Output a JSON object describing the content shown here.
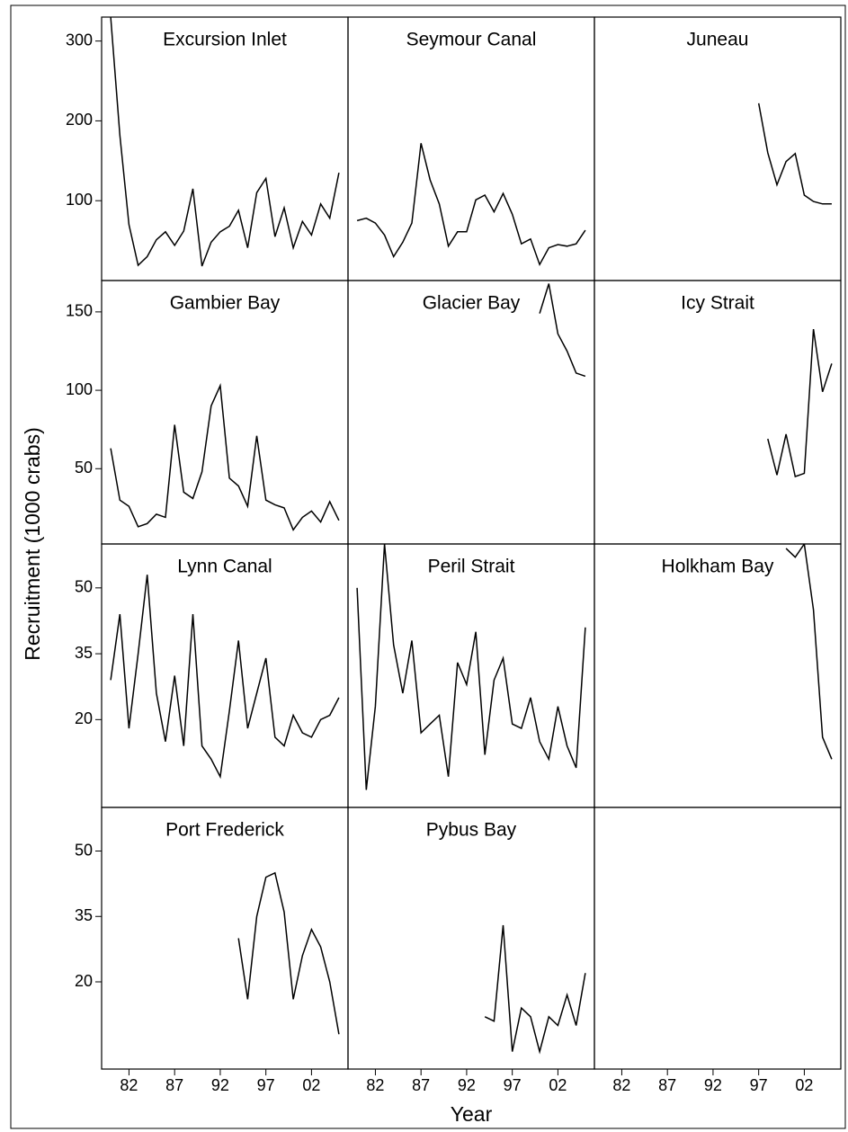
{
  "ylabel": "Recruitment (1000 crabs)",
  "xlabel": "Year",
  "xlim": [
    1979,
    2006
  ],
  "xticks": [
    {
      "value": 1982,
      "label": "82"
    },
    {
      "value": 1987,
      "label": "87"
    },
    {
      "value": 1992,
      "label": "92"
    },
    {
      "value": 1997,
      "label": "97"
    },
    {
      "value": 2002,
      "label": "02"
    }
  ],
  "chart_data": [
    {
      "type": "line",
      "title": "Excursion Inlet",
      "color": "#000000",
      "ylim": [
        0,
        330
      ],
      "yticks": [
        100,
        200,
        300
      ],
      "x": [
        1980,
        1981,
        1982,
        1983,
        1984,
        1985,
        1986,
        1987,
        1988,
        1989,
        1990,
        1991,
        1992,
        1993,
        1994,
        1995,
        1996,
        1997,
        1998,
        1999,
        2000,
        2001,
        2002,
        2003,
        2004,
        2005
      ],
      "values": [
        330,
        182,
        70,
        19,
        30,
        51,
        61,
        44,
        62,
        115,
        18,
        48,
        61,
        68,
        88,
        41,
        110,
        128,
        55,
        91,
        41,
        74,
        57,
        96,
        78,
        135
      ]
    },
    {
      "type": "line",
      "title": "Seymour Canal",
      "color": "#000000",
      "ylim": [
        0,
        330
      ],
      "x": [
        1980,
        1981,
        1982,
        1983,
        1984,
        1985,
        1986,
        1987,
        1988,
        1989,
        1990,
        1991,
        1992,
        1993,
        1994,
        1995,
        1996,
        1997,
        1998,
        1999,
        2000,
        2001,
        2002,
        2003,
        2004,
        2005
      ],
      "values": [
        75,
        78,
        72,
        57,
        30,
        48,
        72,
        172,
        126,
        96,
        43,
        61,
        61,
        101,
        107,
        86,
        109,
        83,
        46,
        52,
        20,
        41,
        45,
        43,
        46,
        63
      ]
    },
    {
      "type": "line",
      "title": "Juneau",
      "color": "#000000",
      "ylim": [
        0,
        330
      ],
      "x": [
        1997,
        1998,
        1999,
        2000,
        2001,
        2002,
        2003,
        2004,
        2005
      ],
      "values": [
        222,
        160,
        120,
        149,
        159,
        107,
        99,
        96,
        96
      ]
    },
    {
      "type": "line",
      "title": "Gambier Bay",
      "color": "#000000",
      "ylim": [
        2,
        170
      ],
      "yticks": [
        50,
        100,
        150
      ],
      "x": [
        1980,
        1981,
        1982,
        1983,
        1984,
        1985,
        1986,
        1987,
        1988,
        1989,
        1990,
        1991,
        1992,
        1993,
        1994,
        1995,
        1996,
        1997,
        1998,
        1999,
        2000,
        2001,
        2002,
        2003,
        2004,
        2005
      ],
      "values": [
        63,
        30,
        26,
        13,
        15,
        21,
        19,
        78,
        35,
        31,
        48,
        90,
        103,
        44,
        39,
        26,
        71,
        30,
        27,
        25,
        11,
        19,
        23,
        16,
        29,
        17
      ]
    },
    {
      "type": "line",
      "title": "Glacier Bay",
      "color": "#000000",
      "ylim": [
        2,
        170
      ],
      "x": [
        2000,
        2001,
        2002,
        2003,
        2004,
        2005
      ],
      "values": [
        149,
        168,
        136,
        125,
        111,
        109
      ]
    },
    {
      "type": "line",
      "title": "Icy Strait",
      "color": "#000000",
      "ylim": [
        2,
        170
      ],
      "x": [
        1998,
        1999,
        2000,
        2001,
        2002,
        2003,
        2004,
        2005
      ],
      "values": [
        69,
        46,
        72,
        45,
        47,
        139,
        99,
        117
      ]
    },
    {
      "type": "line",
      "title": "Lynn Canal",
      "color": "#000000",
      "ylim": [
        0,
        60
      ],
      "yticks": [
        20,
        35,
        50
      ],
      "x": [
        1980,
        1981,
        1982,
        1983,
        1984,
        1985,
        1986,
        1987,
        1988,
        1989,
        1990,
        1991,
        1992,
        1993,
        1994,
        1995,
        1996,
        1997,
        1998,
        1999,
        2000,
        2001,
        2002,
        2003,
        2004,
        2005
      ],
      "values": [
        29,
        44,
        18,
        35,
        53,
        26,
        15,
        30,
        14,
        44,
        14,
        11,
        7,
        22,
        38,
        18,
        26,
        34,
        16,
        14,
        21,
        17,
        16,
        20,
        21,
        25
      ]
    },
    {
      "type": "line",
      "title": "Peril Strait",
      "color": "#000000",
      "ylim": [
        0,
        60
      ],
      "x": [
        1980,
        1981,
        1982,
        1983,
        1984,
        1985,
        1986,
        1987,
        1988,
        1989,
        1990,
        1991,
        1992,
        1993,
        1994,
        1995,
        1996,
        1997,
        1998,
        1999,
        2000,
        2001,
        2002,
        2003,
        2004,
        2005
      ],
      "values": [
        50,
        4,
        23,
        60,
        37,
        26,
        38,
        17,
        19,
        21,
        7,
        33,
        28,
        40,
        12,
        29,
        34,
        19,
        18,
        25,
        15,
        11,
        23,
        14,
        9,
        41
      ]
    },
    {
      "type": "line",
      "title": "Holkham Bay",
      "color": "#000000",
      "ylim": [
        0,
        60
      ],
      "x": [
        2000,
        2001,
        2002,
        2003,
        2004,
        2005
      ],
      "values": [
        59,
        57,
        60,
        45,
        16,
        11
      ]
    },
    {
      "type": "line",
      "title": "Port Frederick",
      "color": "#000000",
      "ylim": [
        0,
        60
      ],
      "yticks": [
        20,
        35,
        50
      ],
      "x": [
        1994,
        1995,
        1996,
        1997,
        1998,
        1999,
        2000,
        2001,
        2002,
        2003,
        2004,
        2005
      ],
      "values": [
        30,
        16,
        35,
        44,
        45,
        36,
        16,
        26,
        32,
        28,
        20,
        8
      ]
    },
    {
      "type": "line",
      "title": "Pybus Bay",
      "color": "#000000",
      "ylim": [
        0,
        60
      ],
      "x": [
        1994,
        1995,
        1996,
        1997,
        1998,
        1999,
        2000,
        2001,
        2002,
        2003,
        2004,
        2005
      ],
      "values": [
        12,
        11,
        33,
        4,
        14,
        12,
        4,
        12,
        10,
        17,
        10,
        22
      ]
    }
  ]
}
